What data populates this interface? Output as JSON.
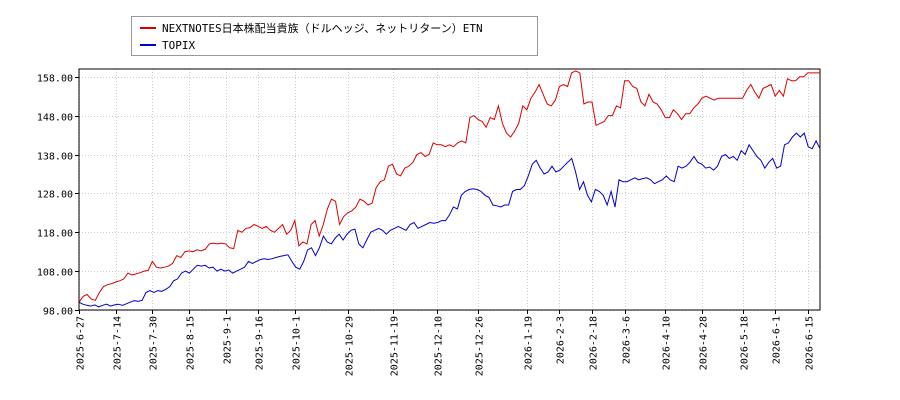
{
  "chart_data": {
    "type": "line",
    "title": "",
    "xlabel": "",
    "ylabel": "",
    "ylim": [
      98,
      160
    ],
    "yticks": [
      "98.00",
      "108.00",
      "118.00",
      "128.00",
      "138.00",
      "148.00",
      "158.00"
    ],
    "xticks": [
      "2025-6-27",
      "2025-7-14",
      "2025-7-30",
      "2025-8-15",
      "2025-9-1",
      "2025-9-16",
      "2025-10-1",
      "2025-10-29",
      "2025-11-19",
      "2025-12-10",
      "2025-12-26",
      "2026-1-19",
      "2026-2-3",
      "2026-2-18",
      "2026-3-6",
      "2026-4-10",
      "2026-4-28",
      "2026-5-18",
      "2026-6-1",
      "2026-6-15"
    ],
    "grid": true,
    "legend_position": "top-left",
    "series": [
      {
        "name": "NEXTNOTES日本株配当貴族（ドルヘッジ、ネットリターン）ETN",
        "color": "#dd0000",
        "values": [
          100.0,
          101.5,
          102.0,
          100.8,
          100.5,
          102.5,
          104.0,
          104.5,
          104.8,
          105.2,
          105.5,
          106.0,
          107.5,
          107.0,
          107.3,
          107.6,
          108.0,
          108.2,
          110.5,
          109.0,
          108.8,
          109.0,
          109.3,
          110.0,
          112.0,
          111.5,
          113.0,
          113.2,
          113.0,
          113.5,
          113.2,
          113.6,
          115.0,
          115.2,
          115.0,
          115.2,
          115.0,
          114.0,
          113.8,
          118.5,
          118.0,
          119.0,
          119.2,
          120.0,
          119.5,
          119.0,
          119.5,
          118.5,
          118.0,
          119.0,
          120.0,
          117.5,
          118.5,
          121.0,
          114.5,
          115.5,
          115.0,
          120.0,
          121.0,
          117.0,
          120.0,
          124.0,
          126.5,
          126.0,
          120.0,
          122.0,
          123.0,
          123.5,
          124.5,
          126.5,
          126.0,
          125.0,
          125.5,
          129.5,
          131.0,
          131.5,
          135.0,
          135.5,
          133.0,
          132.5,
          134.5,
          135.0,
          136.0,
          138.0,
          138.5,
          137.5,
          138.0,
          141.0,
          140.5,
          140.5,
          140.0,
          140.5,
          140.0,
          141.0,
          141.5,
          141.0,
          147.5,
          148.0,
          147.0,
          146.5,
          145.0,
          147.5,
          147.0,
          150.5,
          146.0,
          143.5,
          142.5,
          144.0,
          146.0,
          150.5,
          149.5,
          152.5,
          154.0,
          156.0,
          153.5,
          151.0,
          150.5,
          152.0,
          155.5,
          156.0,
          155.5,
          159.0,
          159.5,
          159.0,
          151.0,
          151.5,
          151.5,
          145.5,
          146.0,
          146.5,
          148.0,
          148.0,
          150.5,
          150.0,
          157.0,
          157.0,
          155.5,
          155.0,
          151.5,
          150.5,
          153.5,
          151.5,
          151.0,
          149.5,
          147.5,
          147.5,
          149.5,
          148.5,
          147.0,
          148.5,
          148.5,
          150.0,
          151.0,
          152.5,
          153.0,
          152.5,
          152.0,
          152.5,
          152.5,
          152.5,
          152.5,
          152.5,
          152.5,
          152.5,
          154.5,
          156.0,
          154.0,
          152.5,
          155.0,
          155.5,
          156.0,
          153.0,
          154.5,
          153.0,
          157.5,
          157.0,
          157.0,
          158.0,
          158.0,
          159.0,
          159.0,
          159.0,
          159.0
        ]
      },
      {
        "name": "TOPIX",
        "color": "#0000cc",
        "values": [
          100.0,
          99.5,
          99.2,
          99.0,
          99.3,
          98.8,
          99.2,
          99.5,
          99.0,
          99.3,
          99.5,
          99.2,
          99.6,
          100.0,
          100.4,
          100.2,
          100.5,
          102.5,
          103.0,
          102.5,
          103.0,
          102.8,
          103.3,
          104.0,
          105.5,
          106.0,
          107.5,
          108.0,
          107.5,
          108.5,
          109.5,
          109.3,
          109.5,
          108.8,
          109.0,
          108.0,
          108.5,
          108.0,
          108.3,
          107.5,
          108.0,
          108.5,
          109.0,
          110.5,
          110.0,
          110.5,
          111.0,
          111.2,
          111.0,
          111.2,
          111.5,
          111.8,
          112.0,
          112.2,
          110.5,
          109.0,
          108.5,
          110.5,
          113.5,
          114.0,
          112.0,
          114.0,
          117.0,
          115.5,
          115.0,
          116.5,
          117.5,
          116.0,
          117.5,
          118.5,
          118.8,
          115.0,
          114.0,
          116.0,
          118.0,
          118.5,
          119.0,
          118.5,
          117.5,
          118.5,
          119.0,
          119.5,
          119.0,
          118.5,
          120.0,
          120.5,
          119.0,
          119.5,
          120.0,
          120.5,
          120.3,
          120.5,
          121.0,
          121.0,
          122.5,
          124.5,
          124.0,
          127.5,
          128.5,
          129.0,
          129.2,
          129.0,
          128.5,
          127.5,
          127.0,
          125.0,
          124.8,
          124.5,
          125.0,
          125.0,
          128.5,
          129.0,
          129.0,
          130.0,
          132.5,
          135.5,
          136.5,
          134.5,
          133.0,
          133.5,
          135.0,
          133.5,
          134.0,
          135.0,
          136.0,
          137.0,
          133.5,
          129.0,
          131.0,
          127.5,
          125.8,
          129.0,
          128.5,
          127.5,
          125.0,
          128.5,
          124.5,
          131.5,
          131.0,
          131.0,
          131.5,
          132.0,
          131.5,
          131.8,
          132.0,
          131.5,
          130.5,
          131.0,
          131.5,
          132.5,
          131.5,
          131.0,
          135.0,
          134.5,
          135.0,
          136.0,
          137.5,
          136.0,
          135.5,
          134.5,
          134.8,
          134.0,
          135.0,
          137.5,
          138.0,
          137.0,
          137.5,
          136.5,
          139.0,
          138.0,
          140.5,
          139.0,
          137.5,
          136.5,
          134.5,
          136.0,
          137.0,
          134.5,
          135.0,
          140.5,
          141.0,
          142.5,
          143.5,
          142.5,
          143.5,
          140.0,
          139.5,
          141.5,
          139.5
        ]
      }
    ]
  }
}
